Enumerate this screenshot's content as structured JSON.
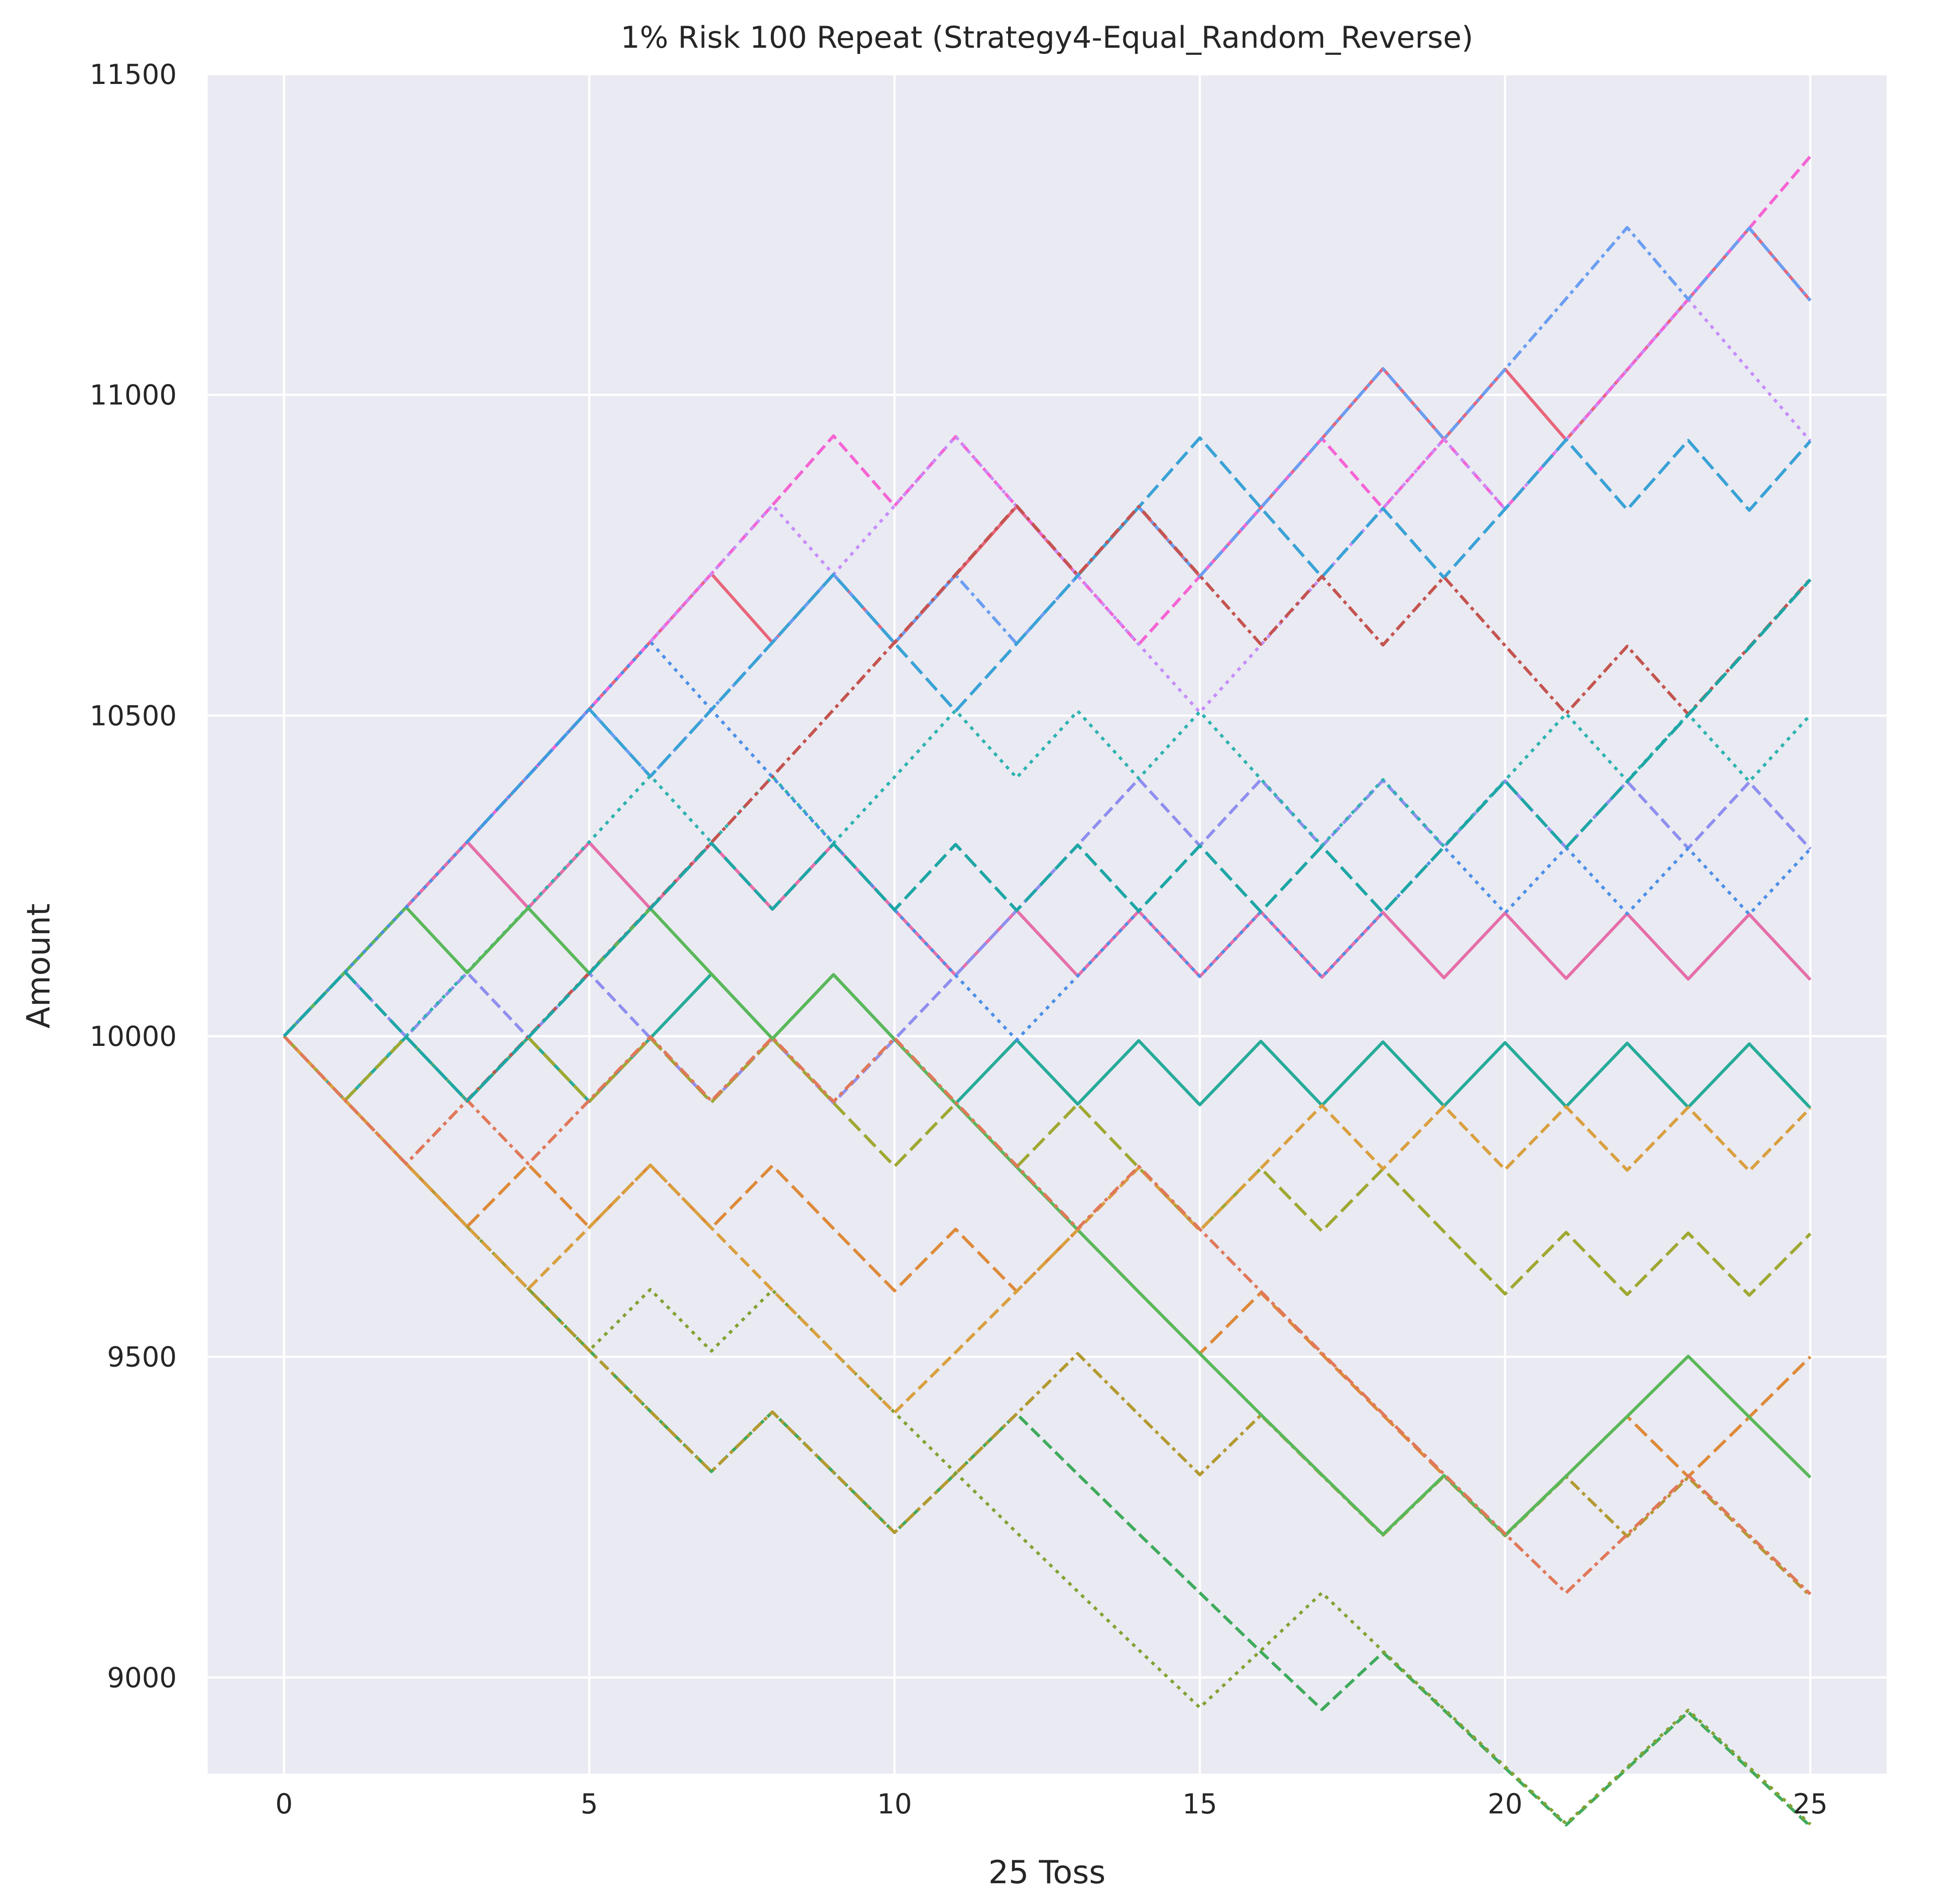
{
  "chart_data": {
    "type": "line",
    "title": "1% Risk 100 Repeat (Strategy4-Equal_Random_Reverse)",
    "xlabel": "25 Toss",
    "ylabel": "Amount",
    "xlim": [
      -1.25,
      26.25
    ],
    "ylim": [
      8850,
      11500
    ],
    "x_ticks": [
      "0",
      "5",
      "10",
      "15",
      "20",
      "25"
    ],
    "y_ticks": [
      "9000",
      "9500",
      "10000",
      "10500",
      "11000",
      "11500"
    ],
    "grid": true,
    "legend": "none",
    "start_amount": 10000,
    "step_pct": 1,
    "n_series": 100,
    "series_shown": 20,
    "colors": {
      "background": "#eaeaf2",
      "grid": "#ffffff",
      "palette": [
        "#e8657a",
        "#f564d4",
        "#c78dfa",
        "#6a9ef2",
        "#3aa2d6",
        "#27ab9a",
        "#3fab5d",
        "#83a233",
        "#b39a31",
        "#dd8a3a",
        "#e56fa9",
        "#8f8ff0",
        "#2eb3b0",
        "#c4544f",
        "#9fa832",
        "#5ab85a",
        "#d9a040",
        "#4c8fe8",
        "#e0785a",
        "#1ea6a6"
      ]
    },
    "series": [
      {
        "values": [
          10000,
          10100,
          10201,
          10303,
          10406,
          10510,
          10615,
          10721,
          10614,
          10720,
          10613,
          10719,
          10826,
          10718,
          10825,
          10717,
          10824,
          10932,
          11041,
          10931,
          11040,
          10930,
          11039,
          11149,
          11260,
          11147
        ]
      },
      {
        "values": [
          10000,
          10100,
          10201,
          10303,
          10406,
          10510,
          10615,
          10721,
          10828,
          10936,
          10827,
          10935,
          10826,
          10718,
          10611,
          10717,
          10824,
          10932,
          10823,
          10931,
          10822,
          10930,
          11039,
          11149,
          11260,
          11372
        ]
      },
      {
        "values": [
          10000,
          10100,
          10201,
          10303,
          10406,
          10510,
          10615,
          10721,
          10828,
          10720,
          10827,
          10935,
          10826,
          10718,
          10611,
          10505,
          10610,
          10716,
          10823,
          10931,
          10822,
          10930,
          11039,
          11149,
          11038,
          10928
        ]
      },
      {
        "values": [
          10000,
          10100,
          10201,
          10303,
          10406,
          10510,
          10405,
          10509,
          10614,
          10720,
          10613,
          10719,
          10612,
          10718,
          10825,
          10717,
          10824,
          10932,
          11041,
          10931,
          11040,
          11150,
          11261,
          11149,
          11260,
          11147
        ]
      },
      {
        "values": [
          10000,
          10100,
          10201,
          10303,
          10406,
          10510,
          10405,
          10509,
          10614,
          10720,
          10613,
          10507,
          10612,
          10718,
          10825,
          10933,
          10824,
          10716,
          10823,
          10715,
          10822,
          10930,
          10821,
          10929,
          10820,
          10928
        ]
      },
      {
        "values": [
          10000,
          9900,
          9999,
          9899,
          9998,
          9898,
          9997,
          10097,
          9996,
          10096,
          9995,
          9895,
          9994,
          9894,
          9993,
          9893,
          9992,
          9892,
          9991,
          9891,
          9990,
          9890,
          9989,
          9889,
          9988,
          9888
        ]
      },
      {
        "values": [
          10000,
          9900,
          9801,
          9703,
          9606,
          9510,
          9415,
          9321,
          9414,
          9320,
          9226,
          9318,
          9411,
          9317,
          9224,
          9132,
          9040,
          8950,
          9039,
          8949,
          8859,
          8770,
          8858,
          8946,
          8857,
          8768
        ]
      },
      {
        "values": [
          10000,
          9900,
          9801,
          9703,
          9606,
          9510,
          9605,
          9509,
          9604,
          9508,
          9413,
          9319,
          9226,
          9134,
          9043,
          8953,
          9042,
          9132,
          9041,
          8951,
          8861,
          8772,
          8860,
          8949,
          8860,
          8771
        ]
      },
      {
        "values": [
          10000,
          9900,
          9801,
          9703,
          9606,
          9510,
          9415,
          9321,
          9414,
          9320,
          9226,
          9318,
          9411,
          9505,
          9410,
          9316,
          9409,
          9315,
          9222,
          9314,
          9221,
          9313,
          9220,
          9312,
          9219,
          9127
        ]
      },
      {
        "values": [
          10000,
          9900,
          9801,
          9703,
          9800,
          9702,
          9799,
          9701,
          9798,
          9700,
          9603,
          9699,
          9602,
          9698,
          9601,
          9505,
          9600,
          9504,
          9409,
          9315,
          9222,
          9314,
          9407,
          9313,
          9406,
          9500
        ]
      },
      {
        "values": [
          10000,
          10100,
          10201,
          10303,
          10200,
          10302,
          10199,
          10301,
          10198,
          10300,
          10197,
          10095,
          10196,
          10094,
          10195,
          10093,
          10194,
          10092,
          10193,
          10091,
          10192,
          10090,
          10191,
          10089,
          10190,
          10088
        ]
      },
      {
        "values": [
          10000,
          10100,
          9999,
          10099,
          9998,
          10098,
          9997,
          9897,
          9996,
          9896,
          9995,
          10095,
          10196,
          10298,
          10401,
          10297,
          10400,
          10296,
          10399,
          10295,
          10398,
          10294,
          10397,
          10293,
          10396,
          10292
        ]
      },
      {
        "values": [
          10000,
          9900,
          10000,
          10100,
          10201,
          10303,
          10406,
          10302,
          10405,
          10301,
          10404,
          10508,
          10403,
          10507,
          10402,
          10506,
          10401,
          10297,
          10400,
          10296,
          10399,
          10503,
          10398,
          10502,
          10397,
          10501
        ]
      },
      {
        "values": [
          10000,
          9900,
          9801,
          9900,
          9999,
          10099,
          10200,
          10302,
          10405,
          10509,
          10614,
          10720,
          10827,
          10719,
          10826,
          10718,
          10611,
          10717,
          10610,
          10716,
          10609,
          10503,
          10608,
          10502,
          10607,
          10713
        ]
      },
      {
        "values": [
          10000,
          9900,
          9999,
          9899,
          9998,
          9898,
          9997,
          9897,
          9996,
          9896,
          9797,
          9895,
          9796,
          9894,
          9795,
          9697,
          9794,
          9696,
          9793,
          9695,
          9598,
          9694,
          9597,
          9693,
          9596,
          9692
        ]
      },
      {
        "values": [
          10000,
          10100,
          10201,
          10099,
          10200,
          10098,
          10199,
          10097,
          9996,
          10096,
          9995,
          9895,
          9796,
          9698,
          9601,
          9505,
          9410,
          9316,
          9223,
          9315,
          9222,
          9314,
          9407,
          9501,
          9406,
          9312
        ]
      },
      {
        "values": [
          10000,
          9900,
          9801,
          9703,
          9606,
          9702,
          9799,
          9701,
          9604,
          9508,
          9413,
          9507,
          9602,
          9698,
          9795,
          9697,
          9794,
          9892,
          9793,
          9891,
          9792,
          9890,
          9791,
          9889,
          9790,
          9888
        ]
      },
      {
        "values": [
          10000,
          10100,
          10201,
          10303,
          10406,
          10510,
          10615,
          10509,
          10404,
          10300,
          10197,
          10095,
          9994,
          10094,
          10195,
          10093,
          10194,
          10092,
          10193,
          10295,
          10192,
          10294,
          10191,
          10293,
          10190,
          10292
        ]
      },
      {
        "values": [
          10000,
          9900,
          9801,
          9900,
          9801,
          9900,
          9999,
          9899,
          9998,
          9898,
          9997,
          9897,
          9798,
          9700,
          9797,
          9699,
          9602,
          9506,
          9411,
          9317,
          9224,
          9132,
          9223,
          9315,
          9222,
          9130
        ]
      },
      {
        "values": [
          10000,
          10100,
          9999,
          9899,
          9998,
          10098,
          10199,
          10301,
          10198,
          10300,
          10197,
          10299,
          10196,
          10298,
          10195,
          10297,
          10194,
          10296,
          10193,
          10295,
          10398,
          10294,
          10397,
          10501,
          10606,
          10712
        ]
      }
    ]
  }
}
